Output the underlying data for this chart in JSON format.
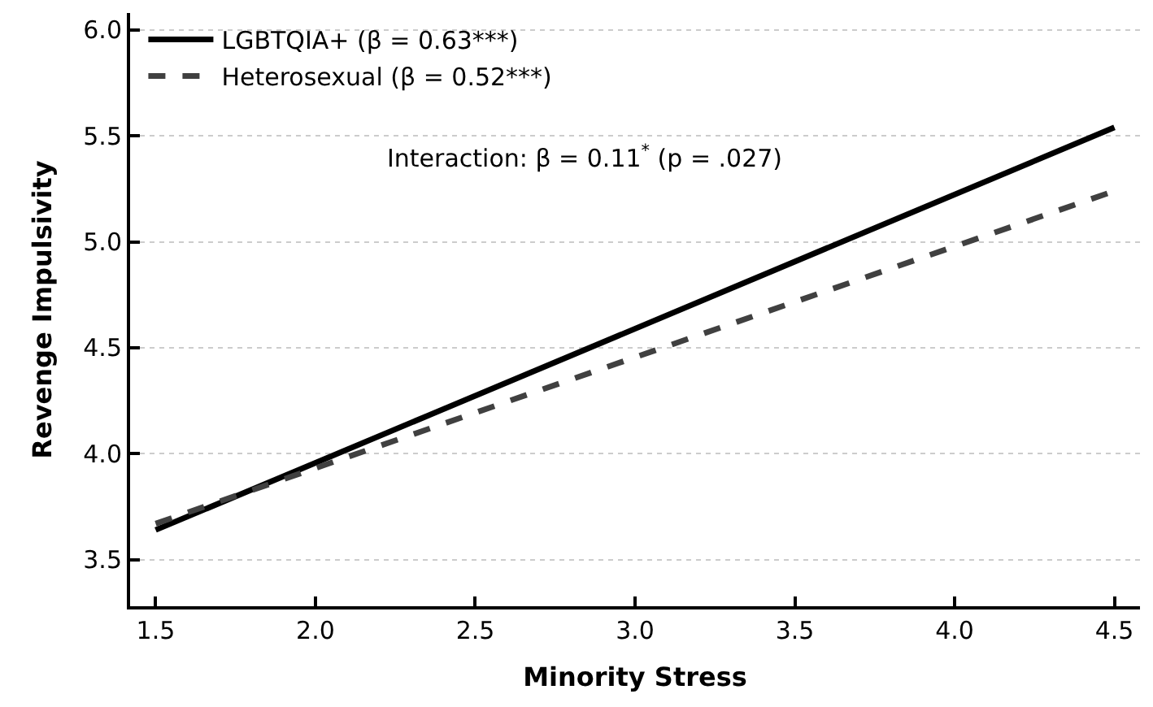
{
  "chart_data": {
    "type": "line",
    "xlabel": "Minority Stress",
    "ylabel": "Revenge Impulsivity",
    "x": [
      1.5,
      4.5
    ],
    "series": [
      {
        "name": "LGBTQIA+ (β = 0.63***)",
        "color": "#000000",
        "values": [
          3.64,
          5.54
        ],
        "line_style": "solid"
      },
      {
        "name": "Heterosexual (β = 0.52***)",
        "color": "#404040",
        "values": [
          3.67,
          5.24
        ],
        "line_style": "dashed"
      }
    ],
    "xlim": [
      1.42,
      4.58
    ],
    "ylim": [
      3.28,
      6.08
    ],
    "xticks": [
      1.5,
      {
        "value": 2,
        "label": "2.0"
      },
      2.5,
      {
        "value": 3,
        "label": "3.0"
      },
      3.5,
      {
        "value": 4,
        "label": "4.0"
      },
      4.5
    ],
    "yticks": [
      3.5,
      {
        "value": 4,
        "label": "4.0"
      },
      4.5,
      {
        "value": 5,
        "label": "5.0"
      },
      5.5,
      {
        "value": 6,
        "label": "6.0"
      }
    ],
    "grid": "y",
    "legend": "top left",
    "marker": "none",
    "annotations": [
      "Interaction: β = 0.11$^{*}$ (p = .027)"
    ]
  }
}
